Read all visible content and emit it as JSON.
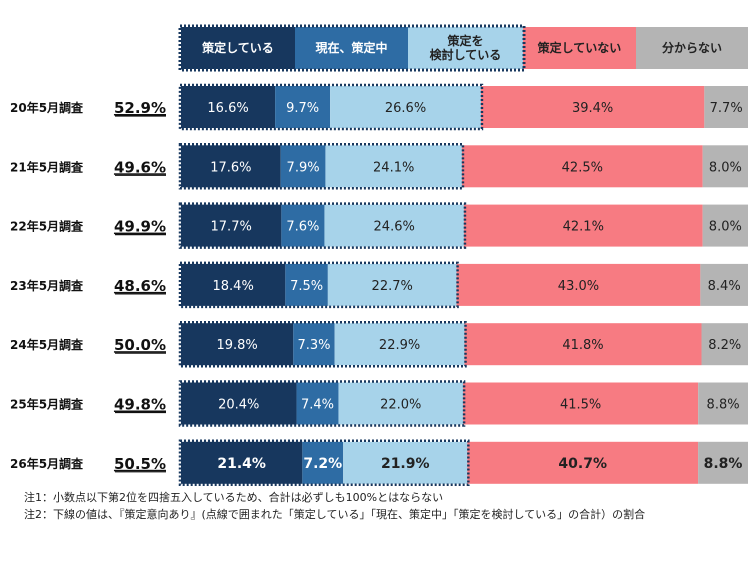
{
  "chart_data": {
    "type": "bar",
    "orientation": "horizontal",
    "stacked": "100%",
    "categories": [
      "20年5月調査",
      "21年5月調査",
      "22年5月調査",
      "23年5月調査",
      "24年5月調査",
      "25年5月調査",
      "26年5月調査"
    ],
    "totals": [
      "52.9%",
      "49.6%",
      "49.9%",
      "48.6%",
      "50.0%",
      "49.8%",
      "50.5%"
    ],
    "series": [
      {
        "name": "策定している",
        "color": "#17375e",
        "text_color": "#ffffff",
        "values": [
          16.6,
          17.6,
          17.7,
          18.4,
          19.8,
          20.4,
          21.4
        ],
        "labels": [
          "16.6%",
          "17.6%",
          "17.7%",
          "18.4%",
          "19.8%",
          "20.4%",
          "21.4%"
        ]
      },
      {
        "name": "現在、策定中",
        "color": "#2e6ca4",
        "text_color": "#ffffff",
        "values": [
          9.7,
          7.9,
          7.6,
          7.5,
          7.3,
          7.4,
          7.2
        ],
        "labels": [
          "9.7%",
          "7.9%",
          "7.6%",
          "7.5%",
          "7.3%",
          "7.4%",
          "7.2%"
        ]
      },
      {
        "name": "策定を\n検討している",
        "color": "#a7d3ea",
        "text_color": "#222222",
        "values": [
          26.6,
          24.1,
          24.6,
          22.7,
          22.9,
          22.0,
          21.9
        ],
        "labels": [
          "26.6%",
          "24.1%",
          "24.6%",
          "22.7%",
          "22.9%",
          "22.0%",
          "21.9%"
        ]
      },
      {
        "name": "策定していない",
        "color": "#f77b82",
        "text_color": "#222222",
        "values": [
          39.4,
          42.5,
          42.1,
          43.0,
          41.8,
          41.5,
          40.7
        ],
        "labels": [
          "39.4%",
          "42.5%",
          "42.1%",
          "43.0%",
          "41.8%",
          "41.5%",
          "40.7%"
        ]
      },
      {
        "name": "分からない",
        "color": "#b4b4b4",
        "text_color": "#222222",
        "values": [
          7.7,
          8.0,
          8.0,
          8.4,
          8.2,
          8.8,
          8.8
        ],
        "labels": [
          "7.7%",
          "8.0%",
          "8.0%",
          "8.4%",
          "8.2%",
          "8.8%",
          "8.8%"
        ]
      }
    ],
    "xlim": [
      0,
      100
    ],
    "bold_last_row": true
  },
  "notes": [
    "注1：小数点以下第2位を四捨五入しているため、合計は必ずしも100%とはならない",
    "注2：下線の値は、『策定意向あり』(点線で囲まれた「策定している」「現在、策定中」「策定を検討している」の合計）の割合"
  ]
}
